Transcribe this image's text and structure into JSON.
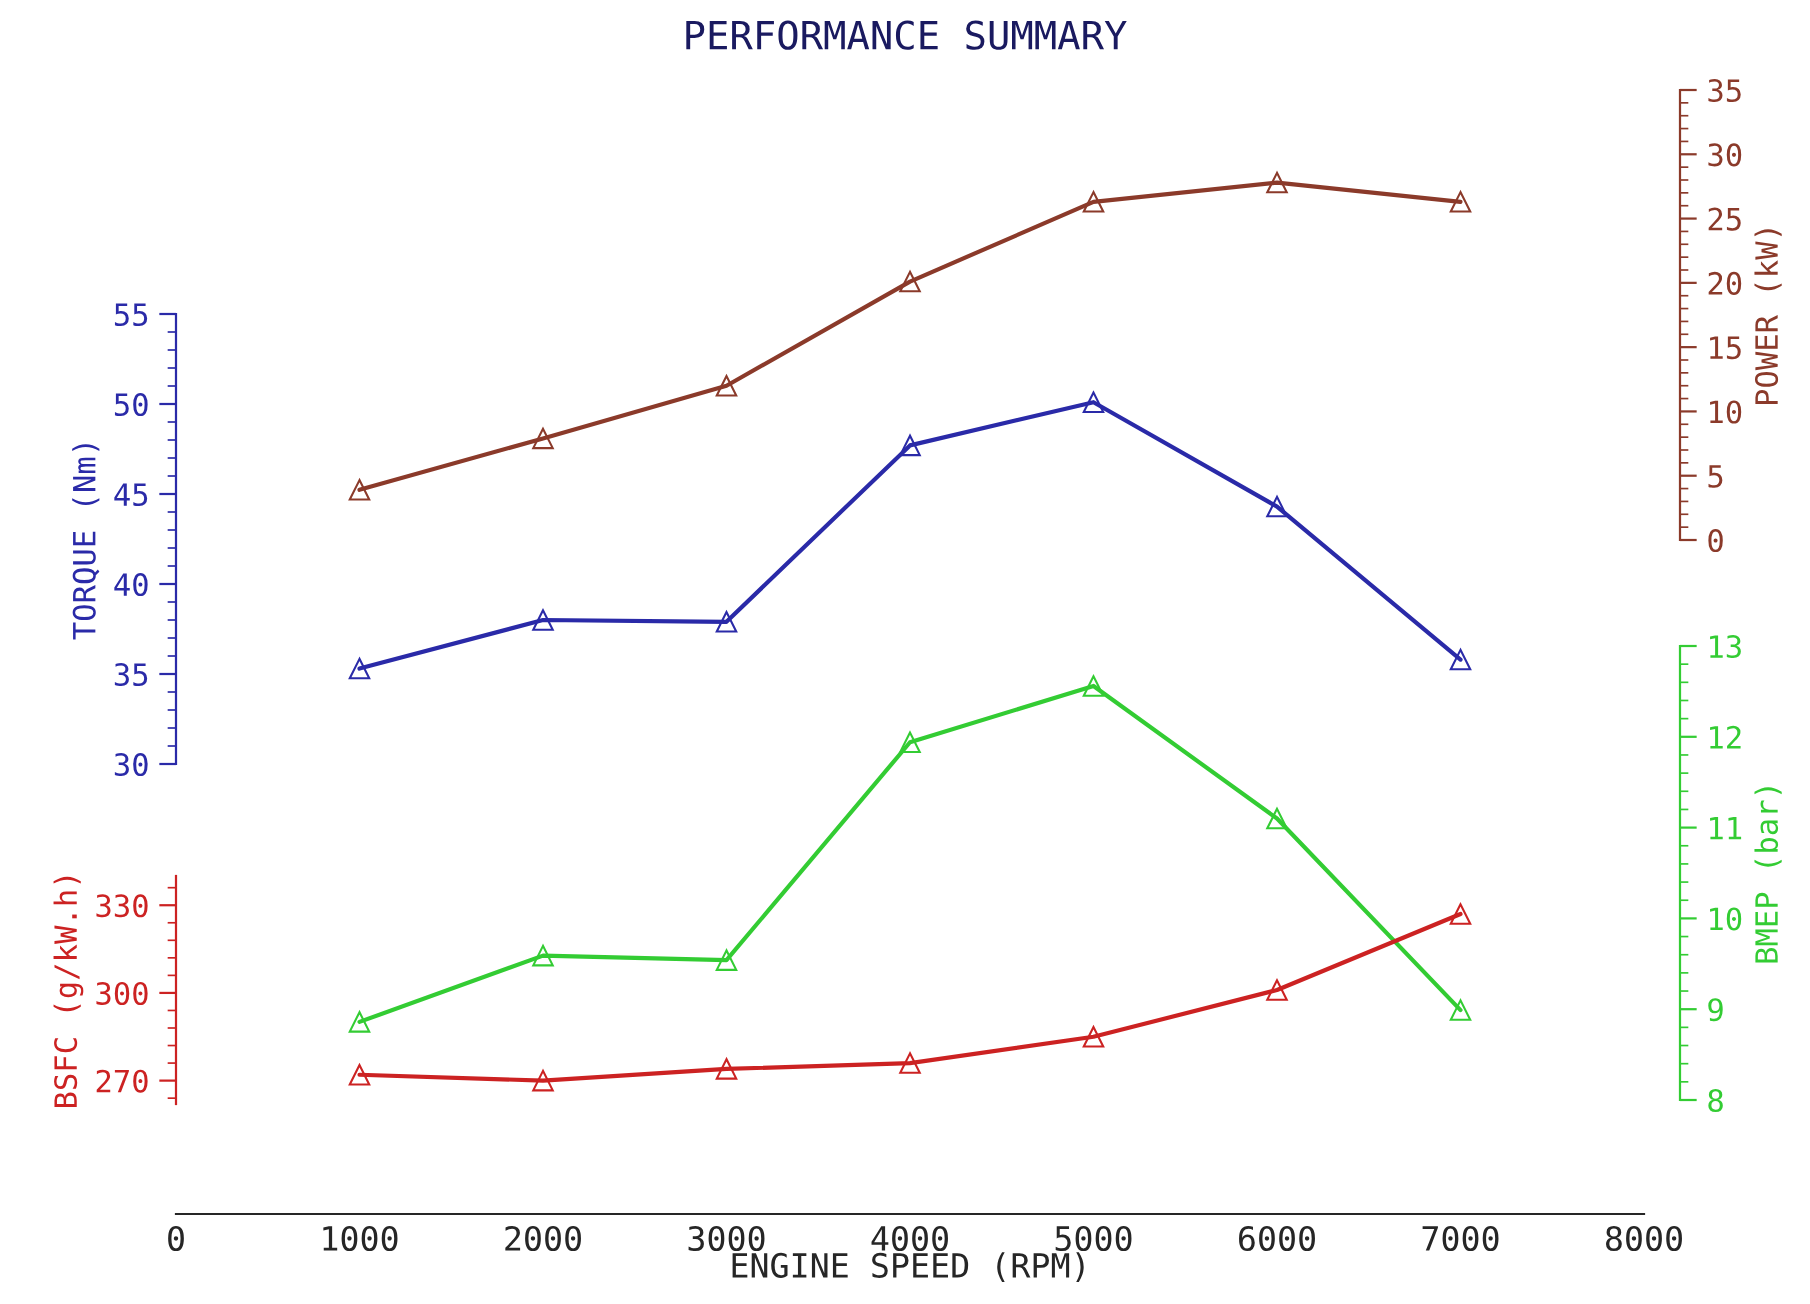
{
  "chart_data": [
    {
      "type": "line",
      "title": "PERFORMANCE SUMMARY",
      "ylabel": "POWER (kW)",
      "x": [
        1000,
        2000,
        3000,
        4000,
        5000,
        6000,
        7000
      ],
      "xlim": [
        0,
        8000
      ],
      "ylim": [
        0,
        35
      ],
      "yticks": [
        0,
        5,
        10,
        15,
        20,
        25,
        30,
        35
      ],
      "tick_labels": "y",
      "marker": "triangle",
      "line_style": "solid",
      "series": [
        {
          "color": "#8b3a2a",
          "values": [
            3.9,
            7.9,
            12.0,
            20.1,
            26.3,
            27.8,
            26.3
          ]
        }
      ]
    },
    {
      "type": "line",
      "ylabel": "TORQUE (Nm)",
      "x": [
        1000,
        2000,
        3000,
        4000,
        5000,
        6000,
        7000
      ],
      "xlim": [
        0,
        8000
      ],
      "ylim": [
        30,
        55
      ],
      "yticks": [
        30,
        35,
        40,
        45,
        50,
        55
      ],
      "tick_labels": "y",
      "marker": "triangle",
      "line_style": "solid",
      "series": [
        {
          "color": "#2a2aa8",
          "values": [
            35.3,
            38.0,
            37.9,
            47.7,
            50.1,
            44.3,
            35.8
          ]
        }
      ]
    },
    {
      "type": "line",
      "ylabel": "BMEP (bar)",
      "x": [
        1000,
        2000,
        3000,
        4000,
        5000,
        6000,
        7000
      ],
      "xlim": [
        0,
        8000
      ],
      "ylim": [
        8,
        13
      ],
      "yticks": [
        8,
        9,
        10,
        11,
        12,
        13
      ],
      "tick_labels": "y",
      "marker": "triangle",
      "line_style": "solid",
      "series": [
        {
          "color": "#33cc33",
          "values": [
            8.86,
            9.59,
            9.54,
            11.94,
            12.56,
            11.1,
            8.99
          ]
        }
      ]
    },
    {
      "type": "line",
      "ylabel": "BSFC (g/kW.h)",
      "xlabel": "ENGINE SPEED (RPM)",
      "x": [
        1000,
        2000,
        3000,
        4000,
        5000,
        6000,
        7000
      ],
      "xlim": [
        0,
        8000
      ],
      "xticks": [
        0,
        1000,
        2000,
        3000,
        4000,
        5000,
        6000,
        7000,
        8000
      ],
      "ylim": [
        262,
        340
      ],
      "yticks": [
        270,
        300,
        330
      ],
      "marker": "triangle",
      "line_style": "solid",
      "series": [
        {
          "color": "#cc2222",
          "values": [
            272,
            270,
            274,
            276,
            285,
            301,
            327
          ]
        }
      ]
    }
  ]
}
